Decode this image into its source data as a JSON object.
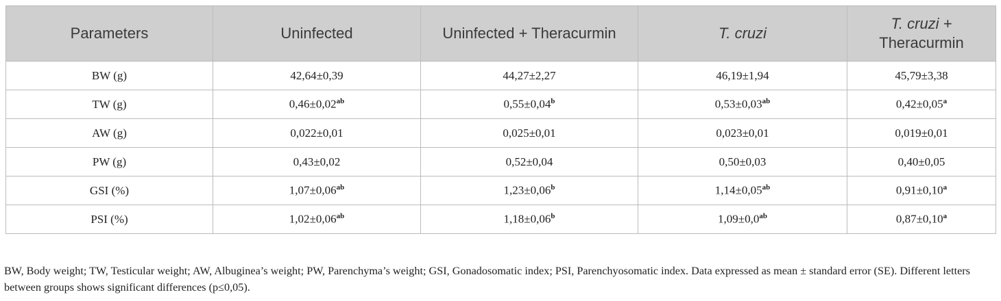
{
  "table": {
    "header": [
      {
        "text": "Parameters"
      },
      {
        "text": "Uninfected"
      },
      {
        "text": "Uninfected + Theracurmin"
      },
      {
        "italic": "T. cruzi"
      },
      {
        "italic": "T. cruzi +",
        "text": "Theracurmin"
      }
    ],
    "rows": [
      [
        {
          "text": "BW (g)"
        },
        {
          "text": "42,64±0,39"
        },
        {
          "text": "44,27±2,27"
        },
        {
          "text": "46,19±1,94"
        },
        {
          "text": "45,79±3,38"
        }
      ],
      [
        {
          "text": "TW (g)"
        },
        {
          "text": "0,46±0,02",
          "sup": "ab"
        },
        {
          "text": "0,55±0,04",
          "sup": "b"
        },
        {
          "text": "0,53±0,03",
          "sup": "ab"
        },
        {
          "text": "0,42±0,05",
          "sup": "a"
        }
      ],
      [
        {
          "text": "AW (g)"
        },
        {
          "text": "0,022±0,01"
        },
        {
          "text": "0,025±0,01"
        },
        {
          "text": "0,023±0,01"
        },
        {
          "text": "0,019±0,01"
        }
      ],
      [
        {
          "text": "PW (g)"
        },
        {
          "text": "0,43±0,02"
        },
        {
          "text": "0,52±0,04"
        },
        {
          "text": "0,50±0,03"
        },
        {
          "text": "0,40±0,05"
        }
      ],
      [
        {
          "text": "GSI (%)"
        },
        {
          "text": "1,07±0,06",
          "sup": "ab"
        },
        {
          "text": "1,23±0,06",
          "sup": "b"
        },
        {
          "text": "1,14±0,05",
          "sup": "ab"
        },
        {
          "text": "0,91±0,10",
          "sup": "a"
        }
      ],
      [
        {
          "text": "PSI (%)"
        },
        {
          "text": "1,02±0,06",
          "sup": "ab"
        },
        {
          "text": "1,18±0,06",
          "sup": "b"
        },
        {
          "text": "1,09±0,0",
          "sup": "ab"
        },
        {
          "text": "0,87±0,10",
          "sup": "a"
        }
      ]
    ]
  },
  "footnote": "BW, Body weight; TW, Testicular weight; AW, Albuginea’s weight; PW, Parenchyma’s weight; GSI, Gonadosomatic index; PSI, Parenchyosomatic index. Data expressed as mean ± standard error (SE). Different letters between groups shows significant differences (p≤0,05)."
}
